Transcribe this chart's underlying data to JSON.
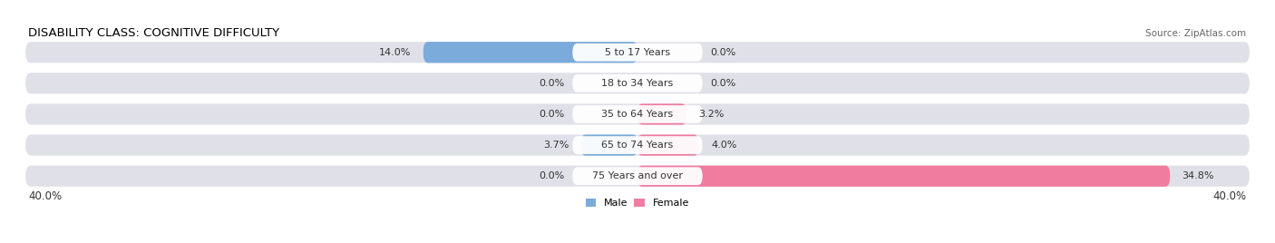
{
  "title": "DISABILITY CLASS: COGNITIVE DIFFICULTY",
  "source": "Source: ZipAtlas.com",
  "categories": [
    "5 to 17 Years",
    "18 to 34 Years",
    "35 to 64 Years",
    "65 to 74 Years",
    "75 Years and over"
  ],
  "male_values": [
    14.0,
    0.0,
    0.0,
    3.7,
    0.0
  ],
  "female_values": [
    0.0,
    0.0,
    3.2,
    4.0,
    34.8
  ],
  "male_color": "#7aabdb",
  "female_color": "#f07ca0",
  "bar_bg_color": "#e0e0e8",
  "label_bg_color": "#ffffff",
  "xlim": 40.0,
  "male_label": "Male",
  "female_label": "Female",
  "title_fontsize": 9.5,
  "label_fontsize": 8.0,
  "value_fontsize": 8.0,
  "axis_label_fontsize": 8.5,
  "source_fontsize": 7.5
}
